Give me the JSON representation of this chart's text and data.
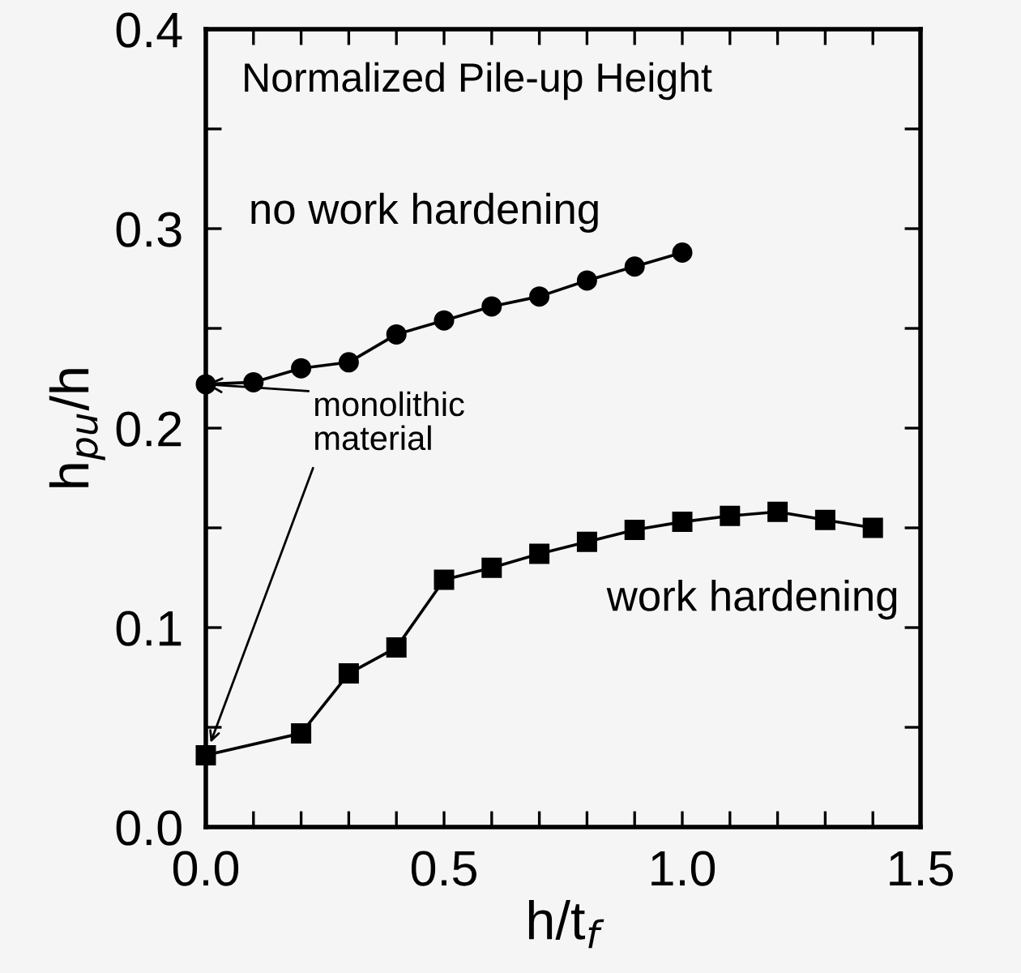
{
  "chart_data": {
    "type": "line",
    "title": "Normalized Pile-up Height",
    "xlabel": "h/t$_{f}$",
    "ylabel": "h$_{pu}$/h",
    "series": [
      {
        "name": "no work hardening",
        "color": "#000000",
        "marker": "circle",
        "x": [
          0,
          0.1,
          0.2,
          0.3,
          0.4,
          0.5,
          0.6,
          0.7,
          0.8,
          0.9,
          1.0
        ],
        "values": [
          0.222,
          0.223,
          0.23,
          0.233,
          0.247,
          0.254,
          0.261,
          0.266,
          0.274,
          0.281,
          0.288
        ]
      },
      {
        "name": "work hardening",
        "color": "#000000",
        "marker": "square",
        "x": [
          0,
          0.2,
          0.3,
          0.4,
          0.5,
          0.6,
          0.7,
          0.8,
          0.9,
          1.0,
          1.1,
          1.2,
          1.3,
          1.4
        ],
        "values": [
          0.036,
          0.047,
          0.077,
          0.09,
          0.124,
          0.13,
          0.137,
          0.143,
          0.149,
          0.153,
          0.156,
          0.158,
          0.154,
          0.15
        ]
      }
    ],
    "annotations": [
      {
        "text": "monolithic material",
        "x": 0,
        "y": 0.222
      }
    ],
    "xlim": [
      0,
      1.5
    ],
    "ylim": [
      0,
      0.4
    ],
    "xticks": [
      {
        "value": 0,
        "label": "0.0"
      },
      {
        "value": 0.1,
        "label": null
      },
      {
        "value": 0.2,
        "label": null
      },
      {
        "value": 0.3,
        "label": null
      },
      {
        "value": 0.4,
        "label": null
      },
      {
        "value": 0.5,
        "label": "0.5"
      },
      {
        "value": 0.6,
        "label": null
      },
      {
        "value": 0.7,
        "label": null
      },
      {
        "value": 0.8,
        "label": null
      },
      {
        "value": 0.9,
        "label": null
      },
      {
        "value": 1.0,
        "label": "1.0"
      },
      {
        "value": 1.1,
        "label": null
      },
      {
        "value": 1.2,
        "label": null
      },
      {
        "value": 1.3,
        "label": null
      },
      {
        "value": 1.4,
        "label": null
      },
      {
        "value": 1.5,
        "label": "1.5"
      }
    ],
    "yticks": [
      {
        "value": 0,
        "label": "0.0"
      },
      {
        "value": 0.05,
        "label": null
      },
      {
        "value": 0.1,
        "label": "0.1"
      },
      {
        "value": 0.15,
        "label": null
      },
      {
        "value": 0.2,
        "label": "0.2"
      },
      {
        "value": 0.25,
        "label": null
      },
      {
        "value": 0.3,
        "label": "0.3"
      },
      {
        "value": 0.35,
        "label": null
      },
      {
        "value": 0.4,
        "label": "0.4"
      }
    ],
    "grid": false,
    "line_style": "solid"
  }
}
